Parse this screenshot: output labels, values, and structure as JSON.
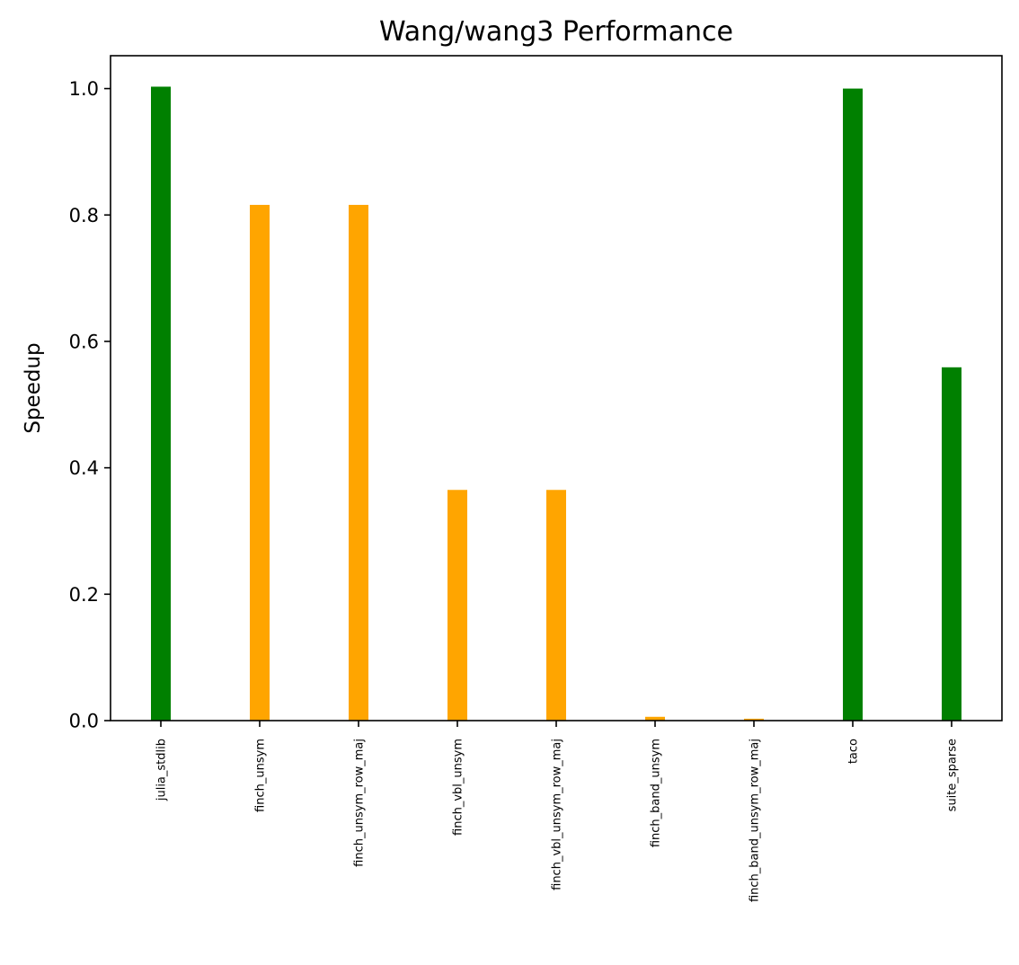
{
  "chart_data": {
    "type": "bar",
    "title": "Wang/wang3 Performance",
    "xlabel": "",
    "ylabel": "Speedup",
    "ylim": [
      0,
      1.052
    ],
    "yticks": [
      "0.0",
      "0.2",
      "0.4",
      "0.6",
      "0.8",
      "1.0"
    ],
    "ytick_values": [
      0.0,
      0.2,
      0.4,
      0.6,
      0.8,
      1.0
    ],
    "grid": false,
    "categories": [
      "julia_stdlib",
      "finch_unsym",
      "finch_unsym_row_maj",
      "finch_vbl_unsym",
      "finch_vbl_unsym_row_maj",
      "finch_band_unsym",
      "finch_band_unsym_row_maj",
      "taco",
      "suite_sparse"
    ],
    "values": [
      1.003,
      0.816,
      0.816,
      0.365,
      0.365,
      0.006,
      0.003,
      1.0,
      0.559
    ],
    "colors": [
      "#008000",
      "#ffa500",
      "#ffa500",
      "#ffa500",
      "#ffa500",
      "#ffa500",
      "#ffa500",
      "#008000",
      "#008000"
    ]
  }
}
